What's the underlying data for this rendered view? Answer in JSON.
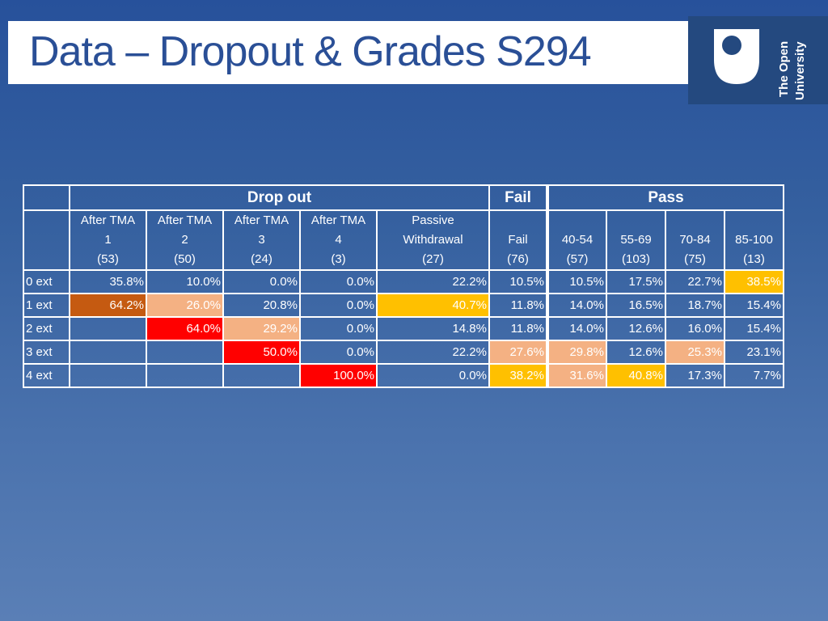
{
  "slide": {
    "title": "Data – Dropout & Grades S294"
  },
  "logo": {
    "line1": "The Open",
    "line2": "University"
  },
  "table": {
    "groups": {
      "dropout": "Drop out",
      "fail": "Fail",
      "pass": "Pass"
    },
    "columns": [
      {
        "line1": "After TMA",
        "line2": "1",
        "line3": "(53)"
      },
      {
        "line1": "After TMA",
        "line2": "2",
        "line3": "(50)"
      },
      {
        "line1": "After TMA",
        "line2": "3",
        "line3": "(24)"
      },
      {
        "line1": "After TMA",
        "line2": "4",
        "line3": "(3)"
      },
      {
        "line1": "Passive",
        "line2": "Withdrawal",
        "line3": "(27)"
      },
      {
        "line1": "",
        "line2": "Fail",
        "line3": "(76)"
      },
      {
        "line1": "",
        "line2": "40-54",
        "line3": "(57)"
      },
      {
        "line1": "",
        "line2": "55-69",
        "line3": "(103)"
      },
      {
        "line1": "",
        "line2": "70-84",
        "line3": "(75)"
      },
      {
        "line1": "",
        "line2": "85-100",
        "line3": "(13)"
      }
    ],
    "rows": [
      {
        "label": "0 ext",
        "cells": [
          "35.8%",
          "10.0%",
          "0.0%",
          "0.0%",
          "22.2%",
          "10.5%",
          "10.5%",
          "17.5%",
          "22.7%",
          "38.5%"
        ]
      },
      {
        "label": "1 ext",
        "cells": [
          "64.2%",
          "26.0%",
          "20.8%",
          "0.0%",
          "40.7%",
          "11.8%",
          "14.0%",
          "16.5%",
          "18.7%",
          "15.4%"
        ]
      },
      {
        "label": "2 ext",
        "cells": [
          "",
          "64.0%",
          "29.2%",
          "0.0%",
          "14.8%",
          "11.8%",
          "14.0%",
          "12.6%",
          "16.0%",
          "15.4%"
        ]
      },
      {
        "label": "3 ext",
        "cells": [
          "",
          "",
          "50.0%",
          "0.0%",
          "22.2%",
          "27.6%",
          "29.8%",
          "12.6%",
          "25.3%",
          "23.1%"
        ]
      },
      {
        "label": "4 ext",
        "cells": [
          "",
          "",
          "",
          "100.0%",
          "0.0%",
          "38.2%",
          "31.6%",
          "40.8%",
          "17.3%",
          "7.7%"
        ]
      }
    ],
    "highlight_colors": {
      "brown": "#c55a11",
      "peach": "#f4b183",
      "red": "#ff0000",
      "amber": "#ffc000"
    }
  }
}
